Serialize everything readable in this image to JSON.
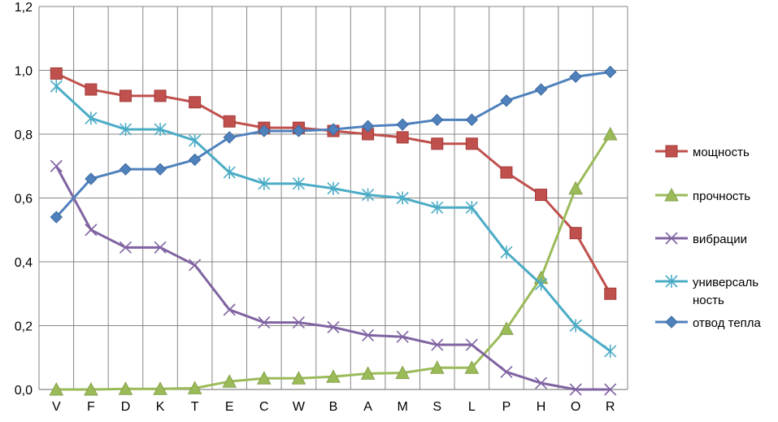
{
  "chart_data": {
    "type": "line",
    "title": "",
    "xlabel": "",
    "ylabel": "",
    "categories": [
      "V",
      "F",
      "D",
      "K",
      "T",
      "E",
      "C",
      "W",
      "B",
      "A",
      "M",
      "S",
      "L",
      "P",
      "H",
      "O",
      "R"
    ],
    "ylim": [
      0,
      1.2
    ],
    "ytick_values": [
      0,
      0.2,
      0.4,
      0.6,
      0.8,
      1.0,
      1.2
    ],
    "ytick_labels": [
      "0,0",
      "0,2",
      "0,4",
      "0,6",
      "0,8",
      "1,0",
      "1,2"
    ],
    "grid": true,
    "legend_position": "right",
    "series": [
      {
        "name": "мощность",
        "color": "#C0504D",
        "marker": "square",
        "values": [
          0.99,
          0.94,
          0.92,
          0.92,
          0.9,
          0.84,
          0.82,
          0.82,
          0.81,
          0.8,
          0.79,
          0.77,
          0.77,
          0.68,
          0.61,
          0.49,
          0.3
        ]
      },
      {
        "name": "прочность",
        "color": "#9BBB59",
        "marker": "triangle",
        "values": [
          0.0,
          0.0,
          0.002,
          0.002,
          0.004,
          0.025,
          0.035,
          0.035,
          0.04,
          0.05,
          0.052,
          0.068,
          0.068,
          0.19,
          0.35,
          0.63,
          0.8
        ]
      },
      {
        "name": "вибрации",
        "color": "#8064A2",
        "marker": "x",
        "values": [
          0.7,
          0.5,
          0.445,
          0.445,
          0.39,
          0.25,
          0.21,
          0.21,
          0.195,
          0.17,
          0.165,
          0.14,
          0.14,
          0.055,
          0.02,
          0.0,
          0.0
        ]
      },
      {
        "name": "универсальность",
        "legend_lines": [
          "универсаль",
          "ность"
        ],
        "color": "#4BACC6",
        "marker": "star",
        "values": [
          0.95,
          0.85,
          0.815,
          0.815,
          0.78,
          0.68,
          0.645,
          0.645,
          0.63,
          0.61,
          0.6,
          0.57,
          0.57,
          0.43,
          0.33,
          0.2,
          0.12
        ]
      },
      {
        "name": "отвод тепла",
        "color": "#4F81BD",
        "marker": "diamond",
        "values": [
          0.54,
          0.66,
          0.69,
          0.69,
          0.72,
          0.79,
          0.81,
          0.81,
          0.815,
          0.825,
          0.83,
          0.845,
          0.845,
          0.905,
          0.94,
          0.98,
          0.995
        ]
      }
    ]
  }
}
